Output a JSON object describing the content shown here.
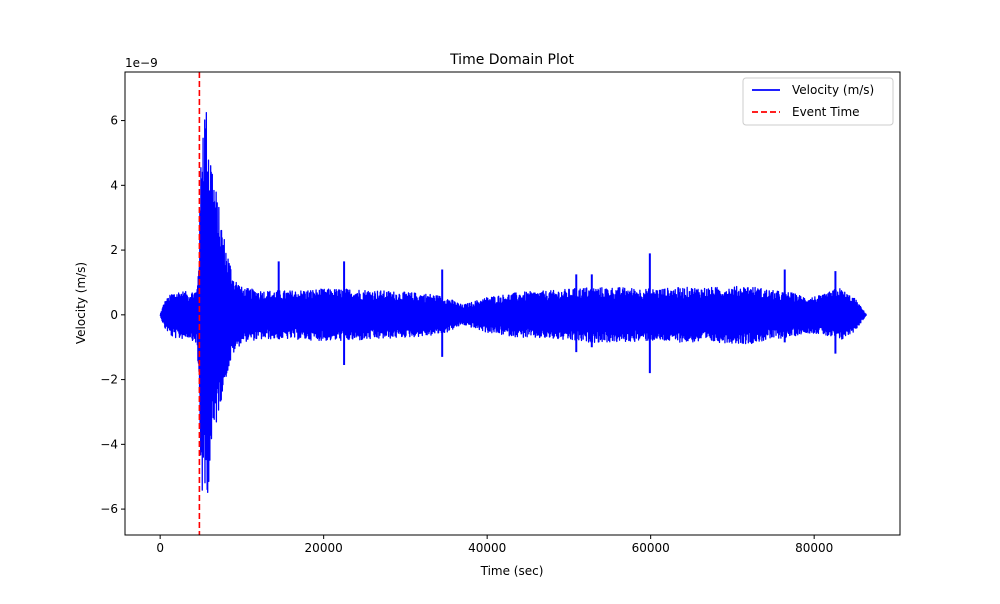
{
  "chart_data": {
    "type": "line",
    "title": "Time Domain Plot",
    "xlabel": "Time (sec)",
    "ylabel": "Velocity (m/s)",
    "y_offset_label": "1e−9",
    "xlim": [
      -4300,
      90500
    ],
    "ylim": [
      -6.8,
      7.5
    ],
    "y_scale_exponent": -9,
    "xticks": [
      0,
      20000,
      40000,
      60000,
      80000
    ],
    "xtick_labels": [
      "0",
      "20000",
      "40000",
      "60000",
      "80000"
    ],
    "yticks": [
      -6,
      -4,
      -2,
      0,
      2,
      4,
      6
    ],
    "ytick_labels": [
      "−6",
      "−4",
      "−2",
      "0",
      "2",
      "4",
      "6"
    ],
    "grid": false,
    "legend_position": "top-right",
    "series": [
      {
        "name": "Velocity (m/s)",
        "color": "#0000ff",
        "style": "solid",
        "x_range": [
          0,
          86400
        ],
        "envelope": {
          "x": [
            0,
            500,
            1500,
            2500,
            3500,
            4500,
            4800,
            5000,
            5300,
            5700,
            6200,
            7000,
            8000,
            9000,
            10000,
            11000,
            13000,
            16000,
            20000,
            24000,
            27000,
            30000,
            33000,
            35000,
            37000,
            40000,
            44000,
            48000,
            52000,
            56000,
            60000,
            64000,
            68000,
            72000,
            75000,
            77000,
            79000,
            81000,
            83000,
            85000,
            86400
          ],
          "upper": [
            0.0,
            0.4,
            0.7,
            0.75,
            0.7,
            0.8,
            2.5,
            5.2,
            6.9,
            6.4,
            5.2,
            3.6,
            2.2,
            1.2,
            0.85,
            0.8,
            0.75,
            0.75,
            0.8,
            0.8,
            0.75,
            0.7,
            0.65,
            0.55,
            0.3,
            0.55,
            0.7,
            0.75,
            0.85,
            0.85,
            0.8,
            0.85,
            0.85,
            0.9,
            0.75,
            0.7,
            0.55,
            0.6,
            0.85,
            0.5,
            0.0
          ],
          "lower": [
            0.0,
            -0.4,
            -0.7,
            -0.75,
            -0.7,
            -0.9,
            -2.8,
            -5.3,
            -6.1,
            -5.8,
            -4.6,
            -3.2,
            -2.0,
            -1.2,
            -0.85,
            -0.8,
            -0.75,
            -0.75,
            -0.8,
            -0.8,
            -0.75,
            -0.7,
            -0.65,
            -0.55,
            -0.3,
            -0.55,
            -0.7,
            -0.75,
            -0.85,
            -0.85,
            -0.8,
            -0.85,
            -0.85,
            -0.9,
            -0.75,
            -0.7,
            -0.55,
            -0.6,
            -0.85,
            -0.5,
            0.0
          ]
        },
        "spikes": [
          {
            "x": 14500,
            "max": 1.65,
            "min": -0.75
          },
          {
            "x": 22500,
            "max": 1.65,
            "min": -1.55
          },
          {
            "x": 34500,
            "max": 1.4,
            "min": -1.3
          },
          {
            "x": 50900,
            "max": 1.25,
            "min": -1.15
          },
          {
            "x": 52800,
            "max": 1.25,
            "min": -1.0
          },
          {
            "x": 59900,
            "max": 1.9,
            "min": -1.8
          },
          {
            "x": 76400,
            "max": 1.4,
            "min": -0.85
          },
          {
            "x": 82600,
            "max": 1.35,
            "min": -1.2
          }
        ]
      },
      {
        "name": "Event Time",
        "color": "#ff0000",
        "style": "dashed",
        "x": 4800
      }
    ]
  }
}
